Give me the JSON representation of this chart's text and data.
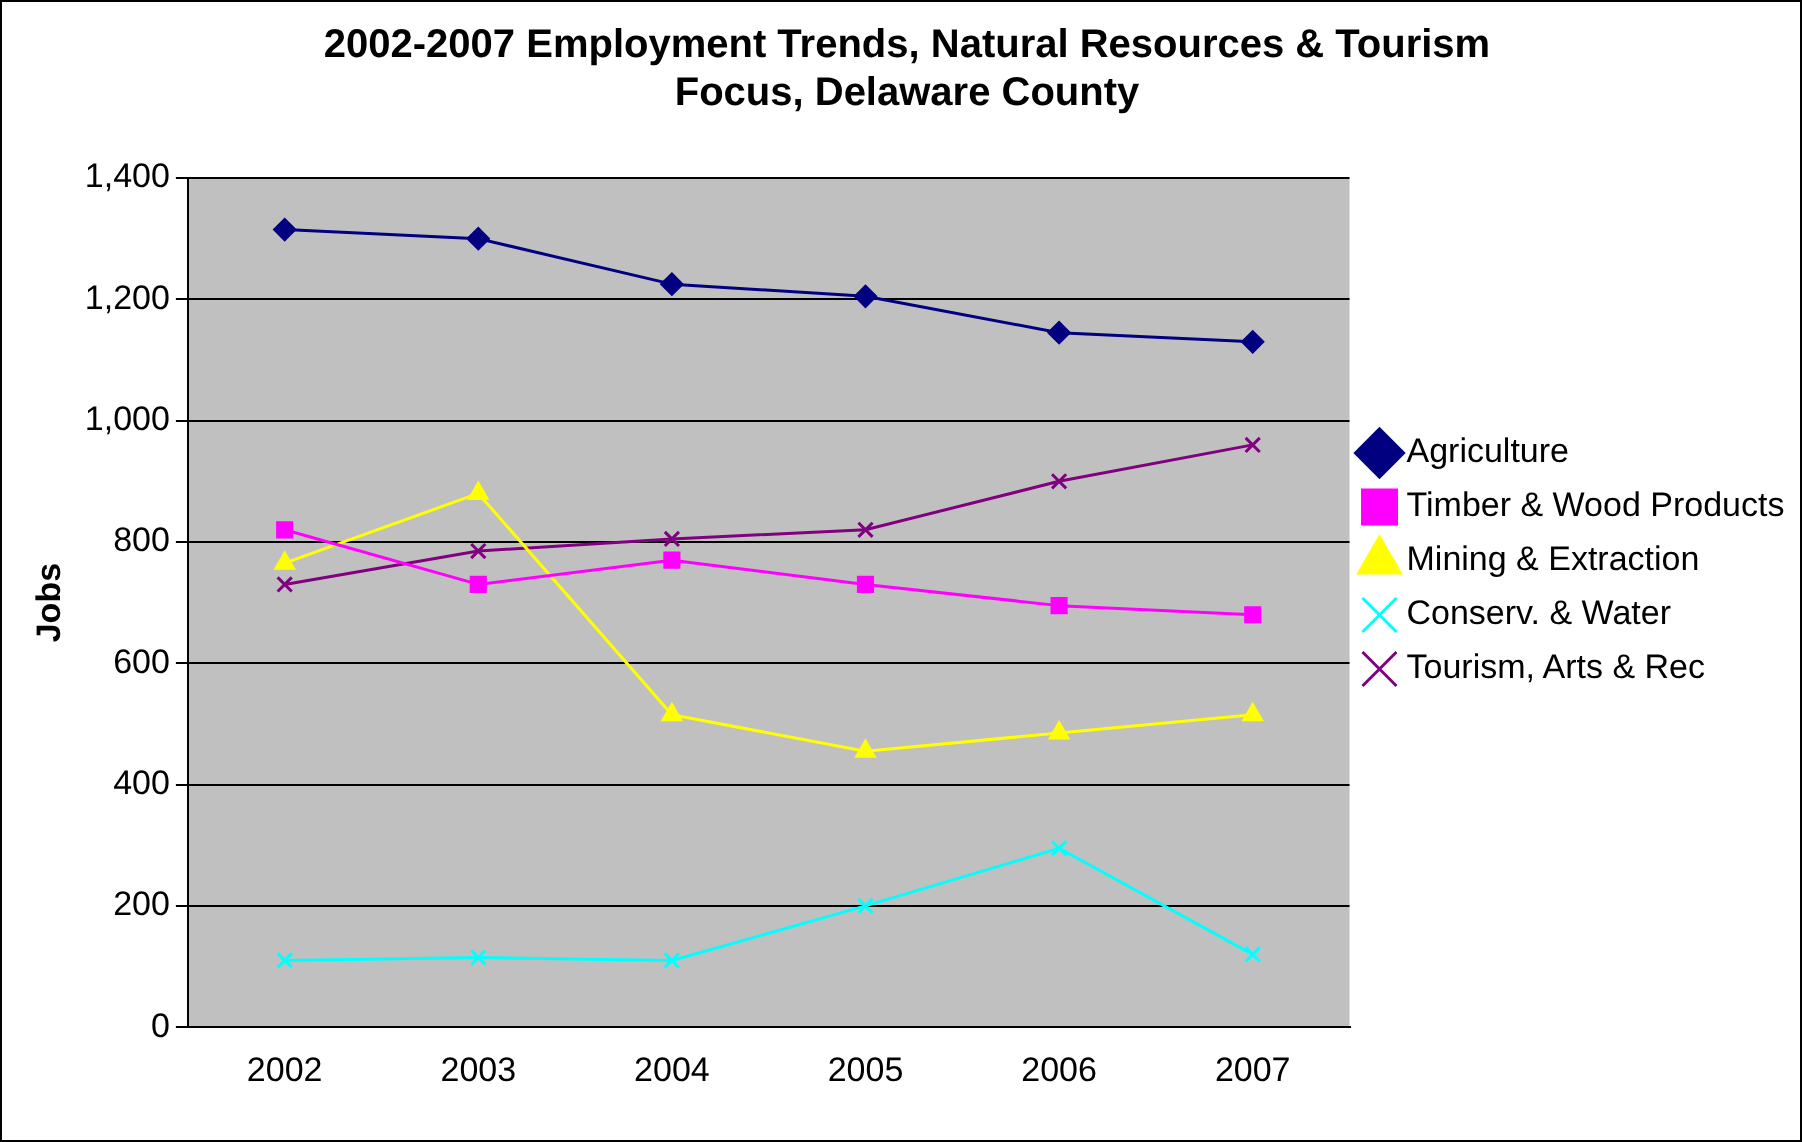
{
  "chart_data": {
    "type": "line",
    "title": "2002-2007 Employment Trends, Natural Resources & Tourism Focus, Delaware County",
    "ylabel": "Jobs",
    "categories": [
      "2002",
      "2003",
      "2004",
      "2005",
      "2006",
      "2007"
    ],
    "ylim": [
      0,
      1400
    ],
    "yticks": [
      0,
      200,
      400,
      600,
      800,
      {
        "value": 1000,
        "label": "1,000"
      },
      {
        "value": 1200,
        "label": "1,200"
      },
      {
        "value": 1400,
        "label": "1,400"
      }
    ],
    "grid": "y",
    "legend": "right",
    "series": [
      {
        "name": "Agriculture",
        "color": "#000080",
        "marker": "diamond",
        "values": [
          1315,
          1300,
          1225,
          1205,
          1145,
          1130
        ]
      },
      {
        "name": "Timber & Wood Products",
        "color": "#ff00ff",
        "marker": "square",
        "values": [
          820,
          730,
          770,
          730,
          695,
          680
        ]
      },
      {
        "name": "Mining & Extraction",
        "color": "#ffff00",
        "marker": "triangle",
        "values": [
          765,
          880,
          515,
          455,
          485,
          515
        ]
      },
      {
        "name": "Conserv. & Water",
        "color": "#00ffff",
        "marker": "cross",
        "values": [
          110,
          115,
          110,
          200,
          295,
          120
        ]
      },
      {
        "name": "Tourism, Arts & Rec",
        "color": "#800080",
        "marker": "cross",
        "values": [
          730,
          785,
          805,
          820,
          900,
          960
        ]
      }
    ]
  }
}
